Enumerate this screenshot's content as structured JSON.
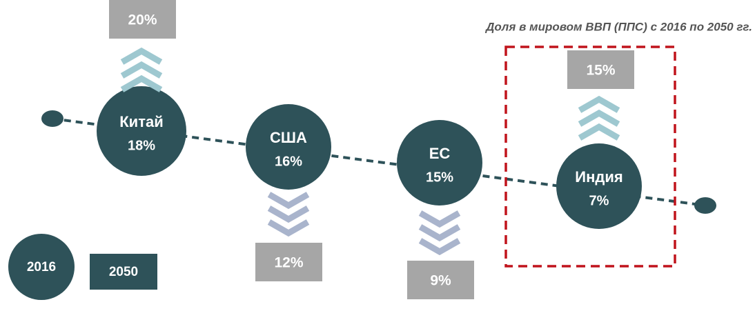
{
  "header": {
    "title": "Доля в мировом ВВП (ППС) с 2016 по 2050 гг."
  },
  "nodes": [
    {
      "label": "Китай",
      "value_2016": "18%",
      "value_2050": "20%",
      "trend": "up",
      "highlighted": false
    },
    {
      "label": "США",
      "value_2016": "16%",
      "value_2050": "12%",
      "trend": "down",
      "highlighted": false
    },
    {
      "label": "ЕС",
      "value_2016": "15%",
      "value_2050": "9%",
      "trend": "down",
      "highlighted": false
    },
    {
      "label": "Индия",
      "value_2016": "7%",
      "value_2050": "15%",
      "trend": "up",
      "highlighted": true
    }
  ],
  "legend": {
    "circle": "2016",
    "box": "2050"
  }
}
